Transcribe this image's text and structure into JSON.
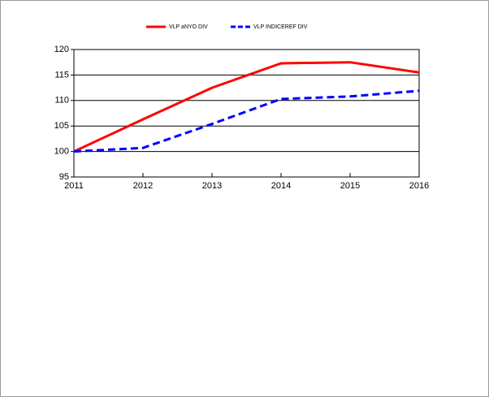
{
  "chart_data": {
    "type": "line",
    "x": [
      2011,
      2012,
      2013,
      2014,
      2015,
      2016
    ],
    "xlim": [
      2011,
      2016
    ],
    "xticks": [
      2011,
      2012,
      2013,
      2014,
      2015,
      2016
    ],
    "ylim": [
      95,
      120
    ],
    "yticks": [
      95,
      100,
      105,
      110,
      115,
      120
    ],
    "grid": true,
    "series": [
      {
        "name": "VLP aNYO DIV",
        "color": "#ff0000",
        "dash": "solid",
        "values": [
          100,
          106.3,
          112.5,
          117.3,
          117.5,
          115.5
        ]
      },
      {
        "name": "VLP INDICEREF DIV",
        "color": "#0000ff",
        "dash": "dashed",
        "values": [
          100,
          100.7,
          105.4,
          110.3,
          110.8,
          111.9
        ]
      }
    ]
  }
}
